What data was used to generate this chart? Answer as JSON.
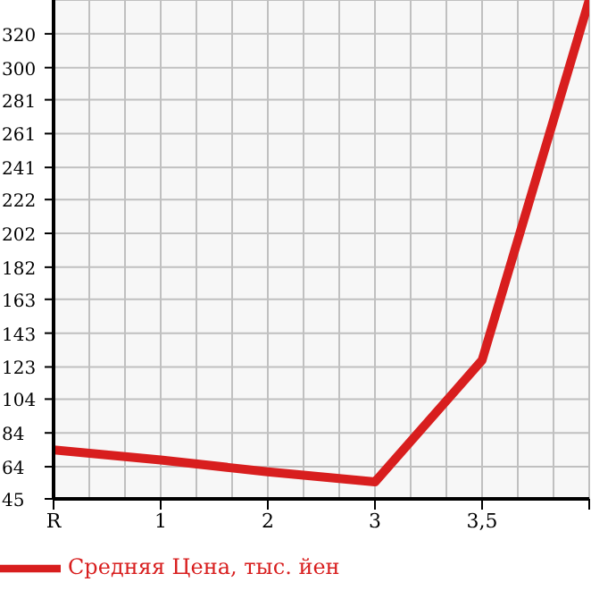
{
  "chart_data": {
    "type": "line",
    "categories": [
      "R",
      "1",
      "2",
      "3",
      "3,5",
      null
    ],
    "series": [
      {
        "name": "Средняя Цена, тыс. йен",
        "color": "#d81e1e",
        "values": [
          74,
          68,
          61,
          55,
          127,
          340
        ]
      }
    ],
    "ylim": [
      45,
      340
    ],
    "yticks": [
      45,
      64,
      84,
      104,
      123,
      143,
      163,
      182,
      202,
      222,
      241,
      261,
      281,
      300,
      320
    ],
    "grid": true,
    "legend": "bottom",
    "marker": "none"
  }
}
